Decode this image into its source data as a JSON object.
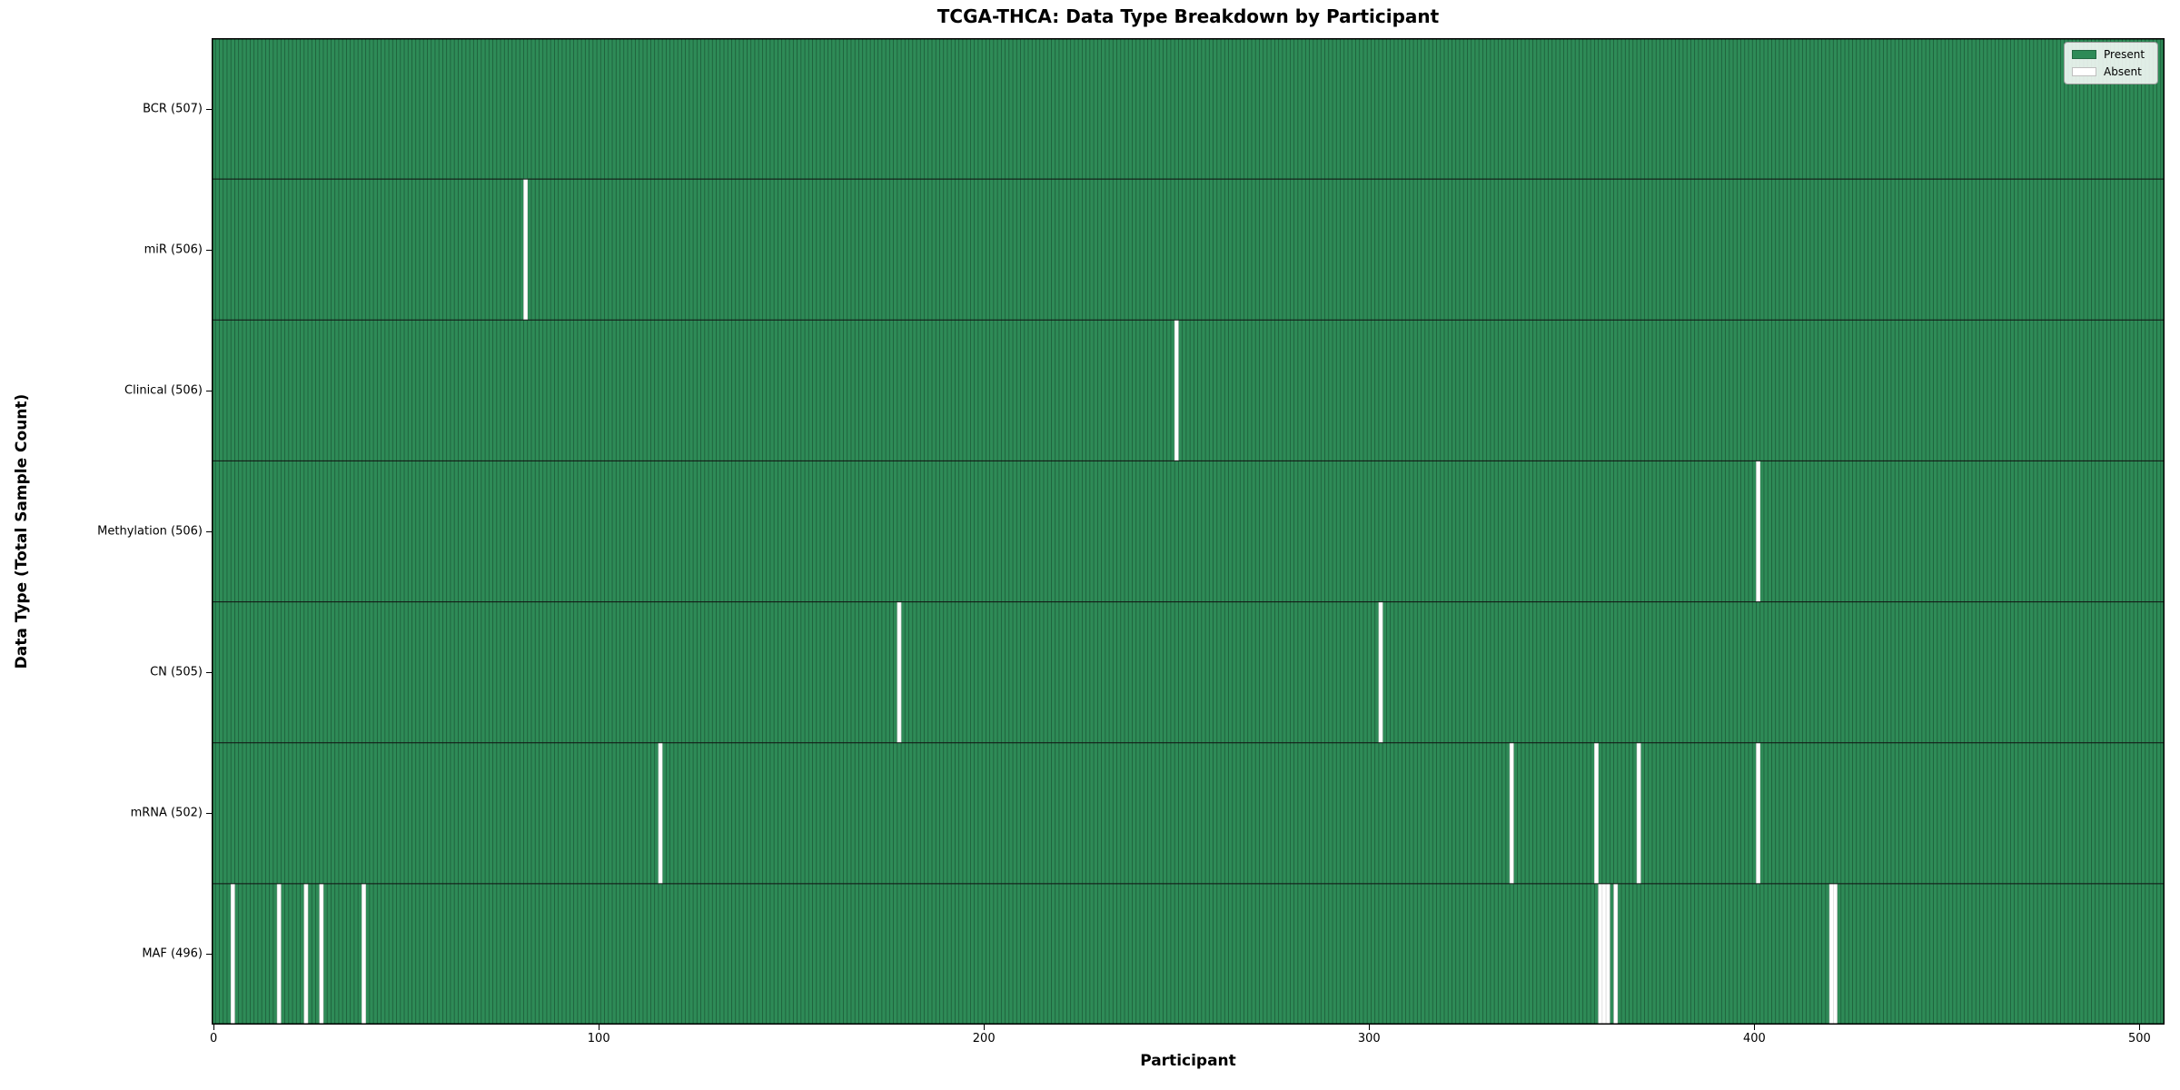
{
  "chart_data": {
    "type": "heatmap",
    "title": "TCGA-THCA: Data Type Breakdown by Participant",
    "xlabel": "Participant",
    "ylabel": "Data Type (Total Sample Count)",
    "x_ticks": [
      0,
      100,
      200,
      300,
      400,
      500
    ],
    "n_participants": 507,
    "xlim": [
      0,
      507
    ],
    "grid": false,
    "legend_position": "upper right",
    "legend": [
      {
        "label": "Present",
        "color": "#2e8b57"
      },
      {
        "label": "Absent",
        "color": "#ffffff"
      }
    ],
    "rows": [
      {
        "label": "BCR (507)",
        "data_type": "BCR",
        "present_count": 507,
        "absent_participants": []
      },
      {
        "label": "miR (506)",
        "data_type": "miR",
        "present_count": 506,
        "absent_participants": [
          81
        ]
      },
      {
        "label": "Clinical (506)",
        "data_type": "Clinical",
        "present_count": 506,
        "absent_participants": [
          250
        ]
      },
      {
        "label": "Methylation (506)",
        "data_type": "Methylation",
        "present_count": 506,
        "absent_participants": [
          401
        ]
      },
      {
        "label": "CN (505)",
        "data_type": "CN",
        "present_count": 505,
        "absent_participants": [
          178,
          303
        ]
      },
      {
        "label": "mRNA (502)",
        "data_type": "mRNA",
        "present_count": 502,
        "absent_participants": [
          116,
          337,
          359,
          370,
          401
        ]
      },
      {
        "label": "MAF (496)",
        "data_type": "MAF",
        "present_count": 496,
        "absent_participants": [
          5,
          17,
          24,
          28,
          39,
          360,
          361,
          362,
          364,
          420,
          421
        ]
      }
    ],
    "colors": {
      "present_fill": "#2e8b57",
      "bar_edge": "#1d5c39",
      "absent_fill": "#ffffff",
      "absent_edge": "#cfcfcf",
      "row_divider": "#111111",
      "frame": "#000000",
      "background": "#ffffff"
    }
  }
}
